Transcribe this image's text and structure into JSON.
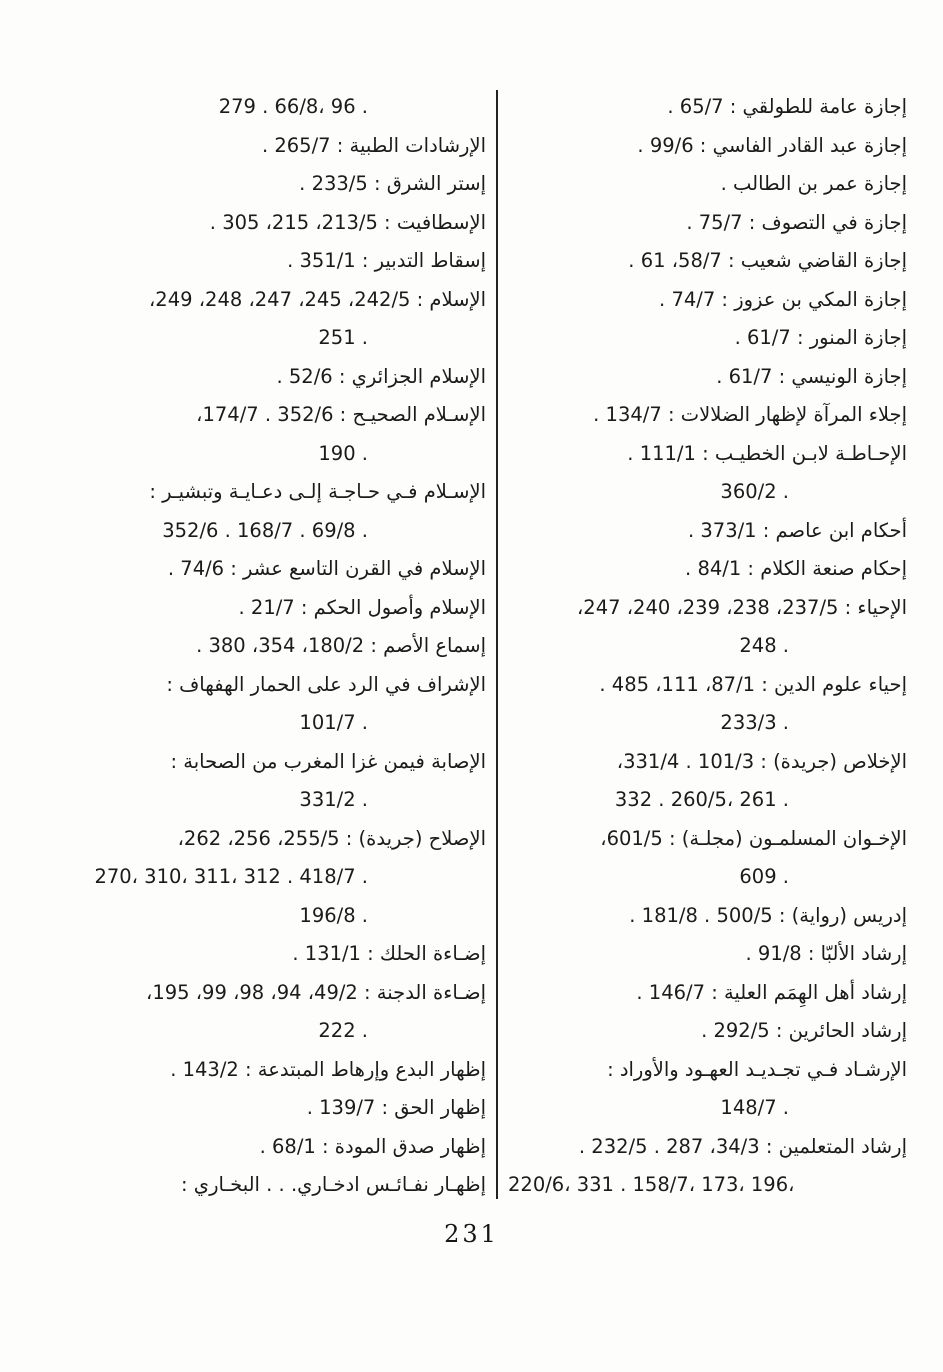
{
  "page_number": "231",
  "right_column": {
    "entries": [
      {
        "lines": [
          "إجازة عامة للطولقي : 65/7 ."
        ]
      },
      {
        "lines": [
          "إجازة عبد القادر الفاسي : 99/6 ."
        ]
      },
      {
        "lines": [
          "إجازة عمر بن الطالب ."
        ]
      },
      {
        "lines": [
          "إجازة في التصوف : 75/7 ."
        ]
      },
      {
        "lines": [
          "إجازة القاضي شعيب : 58/7، 61 ."
        ]
      },
      {
        "lines": [
          "إجازة المكي بن عزوز : 74/7 ."
        ]
      },
      {
        "lines": [
          "إجازة المنور : 61/7 ."
        ]
      },
      {
        "lines": [
          "إجازة الونيسي : 61/7 ."
        ]
      },
      {
        "lines": [
          "إجلاء المرآة لإظهار الضلالات : 134/7 ."
        ]
      },
      {
        "lines": [
          "الإحـاطـة لابـن الخطيـب : 111/1 .",
          "360/2 ."
        ]
      },
      {
        "lines": [
          "أحكام ابن عاصم : 373/1 ."
        ]
      },
      {
        "lines": [
          "إحكام صنعة الكلام : 84/1 ."
        ]
      },
      {
        "lines": [
          "الإحياء : 237/5، 238، 239، 240، 247،",
          "248 ."
        ]
      },
      {
        "lines": [
          "إحياء علوم الدين : 87/1، 111، 485 .",
          "233/3 ."
        ]
      },
      {
        "lines": [
          "الإخلاص (جريدة) : 101/3 . 331/4،",
          "332 . 260/5، 261 ."
        ]
      },
      {
        "lines": [
          "الإخـوان المسلمـون (مجلـة) : 601/5،",
          "609 ."
        ]
      },
      {
        "lines": [
          "إدريس (رواية) : 500/5 . 181/8 ."
        ]
      },
      {
        "lines": [
          "إرشاد الألبّا : 91/8 ."
        ]
      },
      {
        "lines": [
          "إرشاد أهل الهِمَم العلية : 146/7 ."
        ]
      },
      {
        "lines": [
          "إرشاد الحائرين : 292/5 ."
        ]
      },
      {
        "lines": [
          "الإرشـاد فـي تجـديـد العهـود والأوراد :",
          "148/7 ."
        ]
      },
      {
        "lines": [
          "إرشاد المتعلمين : 34/3، 287 . 232/5 .",
          "220/6، 331 . 158/7، 173، 196،"
        ]
      }
    ]
  },
  "left_column": {
    "entries": [
      {
        "continuation": true,
        "lines": [
          "279 . 66/8، 96 ."
        ]
      },
      {
        "lines": [
          "الإرشادات الطبية : 265/7 ."
        ]
      },
      {
        "lines": [
          "إستر الشرق : 233/5 ."
        ]
      },
      {
        "lines": [
          "الإسطافيت : 213/5، 215، 305 ."
        ]
      },
      {
        "lines": [
          "إسقاط التدبير : 351/1 ."
        ]
      },
      {
        "lines": [
          "الإسلام : 242/5، 245، 247، 248، 249،",
          "251 ."
        ]
      },
      {
        "lines": [
          "الإسلام الجزائري : 52/6 ."
        ]
      },
      {
        "lines": [
          "الإسـلام الصحيـح : 352/6 . 174/7،",
          "190 ."
        ]
      },
      {
        "lines": [
          "الإسـلام فـي حـاجـة إلـى دعـايـة وتبشيـر :",
          "352/6 . 168/7 . 69/8 ."
        ]
      },
      {
        "lines": [
          "الإسلام في القرن التاسع عشر : 74/6 ."
        ]
      },
      {
        "lines": [
          "الإسلام وأصول الحكم : 21/7 ."
        ]
      },
      {
        "lines": [
          "إسماع الأصم : 180/2، 354، 380 ."
        ]
      },
      {
        "lines": [
          "الإشراف في الرد على الحمار الهفهاف :",
          "101/7 ."
        ]
      },
      {
        "lines": [
          "الإصابة فيمن غزا المغرب من الصحابة :",
          "331/2 ."
        ]
      },
      {
        "lines": [
          "الإصلاح (جريدة) : 255/5، 256، 262،",
          "270، 310، 311، 312 . 418/7 .",
          "196/8 ."
        ]
      },
      {
        "lines": [
          "إضـاءة الحلك : 131/1 ."
        ]
      },
      {
        "lines": [
          "إضـاءة الدجنة : 49/2، 94، 98، 99، 195،",
          "222 ."
        ]
      },
      {
        "lines": [
          "إظهار البدع وإرهاط المبتدعة : 143/2 ."
        ]
      },
      {
        "lines": [
          "إظهار الحق : 139/7 ."
        ]
      },
      {
        "lines": [
          "إظهار صدق المودة : 68/1 ."
        ]
      },
      {
        "lines": [
          "إظهـار نفـائـس ادخـاري. . . البخـاري :"
        ]
      }
    ]
  }
}
